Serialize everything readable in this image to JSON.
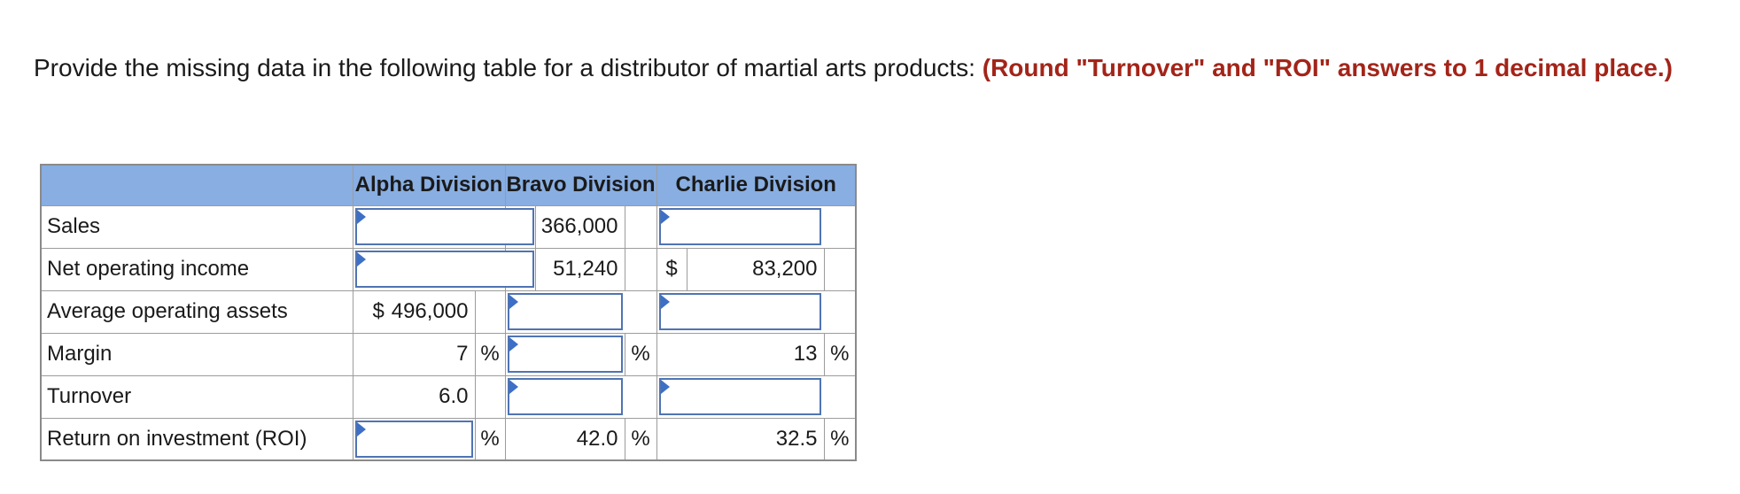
{
  "prompt": {
    "text": "Provide the missing data in the following table for a distributor of martial arts products: ",
    "emphasis": "(Round \"Turnover\" and \"ROI\" answers to 1 decimal place.)"
  },
  "table": {
    "headers": [
      "Alpha Division",
      "Bravo Division",
      "Charlie Division"
    ],
    "currency_symbol": "$",
    "percent_symbol": "%",
    "rows": {
      "sales": {
        "label": "Sales",
        "bravo": "366,000"
      },
      "noi": {
        "label": "Net operating income",
        "bravo": "51,240",
        "charlie": "83,200"
      },
      "assets": {
        "label": "Average operating assets",
        "alpha": "496,000"
      },
      "margin": {
        "label": "Margin",
        "alpha": "7",
        "charlie": "13"
      },
      "turnover": {
        "label": "Turnover",
        "alpha": "6.0"
      },
      "roi": {
        "label": "Return on investment (ROI)",
        "bravo": "42.0",
        "charlie": "32.5"
      }
    }
  },
  "colors": {
    "header_bg": "#88aee2",
    "emphasis_text": "#a32419",
    "input_border": "#4f74b3"
  }
}
